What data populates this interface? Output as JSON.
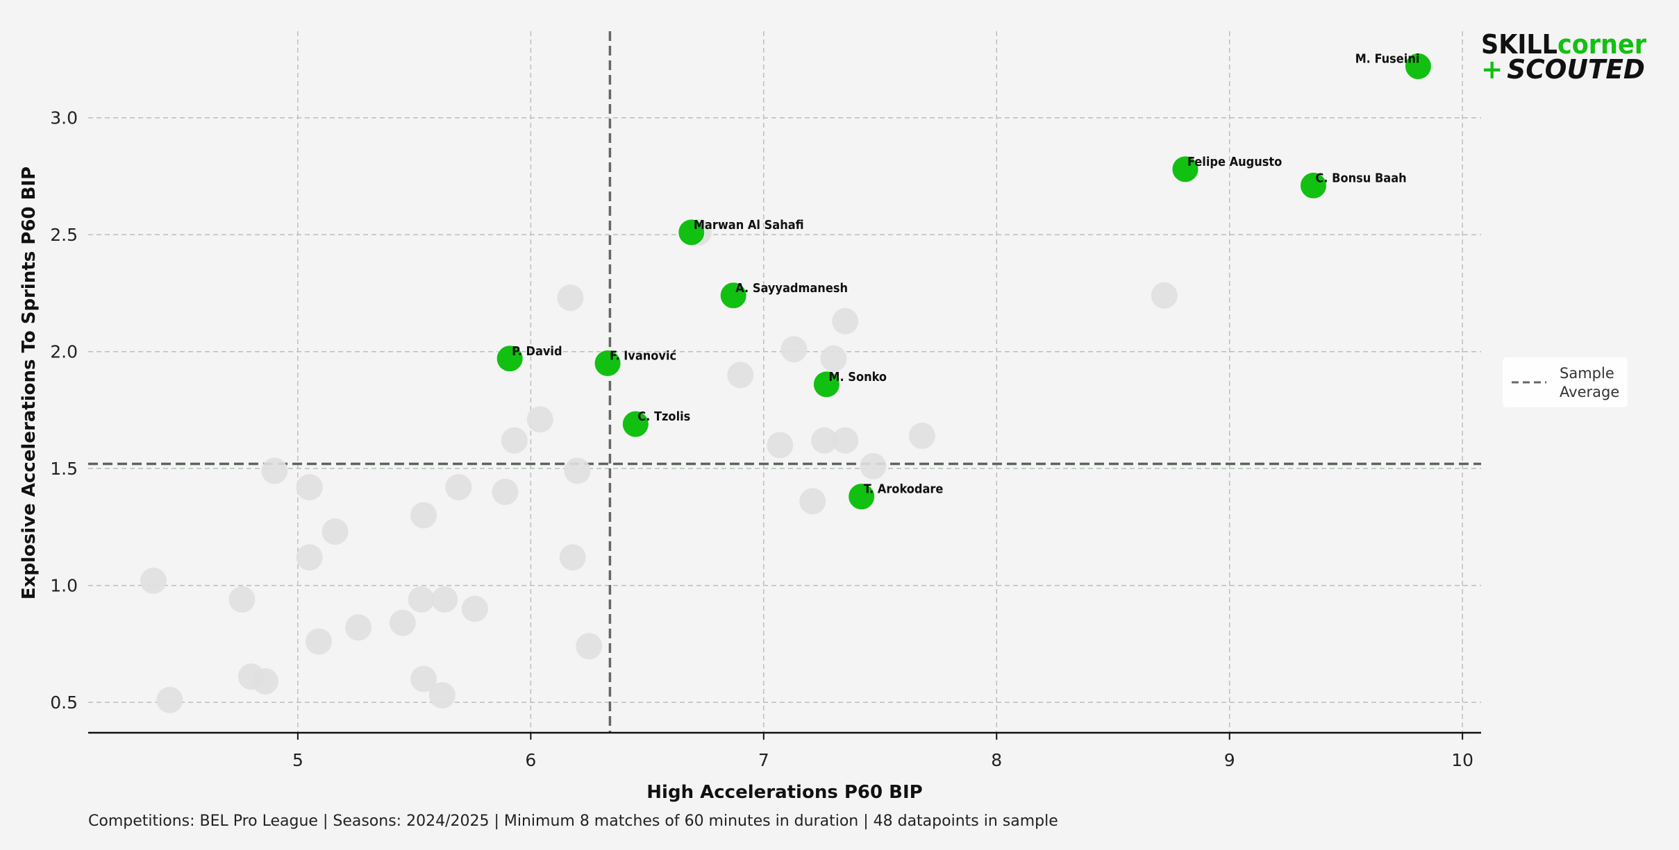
{
  "chart_data": {
    "type": "scatter",
    "xlabel": "High Accelerations P60 BIP",
    "ylabel": "Explosive Accelerations To Sprints P60 BIP",
    "xlim": [
      4.1,
      10.08
    ],
    "ylim": [
      0.37,
      3.37
    ],
    "xticks": [
      5,
      6,
      7,
      8,
      9,
      10
    ],
    "yticks": [
      0.5,
      1.0,
      1.5,
      2.0,
      2.5,
      3.0
    ],
    "xtick_labels": [
      "5",
      "6",
      "7",
      "8",
      "9",
      "10"
    ],
    "ytick_labels": [
      "0.5",
      "1.0",
      "1.5",
      "2.0",
      "2.5",
      "3.0"
    ],
    "grid": true,
    "reference_lines": {
      "x_avg": 6.34,
      "y_avg": 1.52
    },
    "legend": {
      "position": "right",
      "label_line1": "Sample",
      "label_line2": "Average"
    },
    "highlight_color": "#12c012",
    "background_color": "#e0e0e0",
    "highlighted": [
      {
        "name": "M. Fuseini",
        "x": 9.81,
        "y": 3.22,
        "label_side": "left"
      },
      {
        "name": "Felipe Augusto",
        "x": 8.81,
        "y": 2.78,
        "label_side": "right"
      },
      {
        "name": "C. Bonsu Baah",
        "x": 9.36,
        "y": 2.71,
        "label_side": "right"
      },
      {
        "name": "Marwan Al Sahafi",
        "x": 6.69,
        "y": 2.51,
        "label_side": "right"
      },
      {
        "name": "A. Sayyadmanesh",
        "x": 6.87,
        "y": 2.24,
        "label_side": "right"
      },
      {
        "name": "P. David",
        "x": 5.91,
        "y": 1.97,
        "label_side": "right"
      },
      {
        "name": "F. Ivanović",
        "x": 6.33,
        "y": 1.95,
        "label_side": "right"
      },
      {
        "name": "M. Sonko",
        "x": 7.27,
        "y": 1.86,
        "label_side": "right"
      },
      {
        "name": "C. Tzolis",
        "x": 6.45,
        "y": 1.69,
        "label_side": "right"
      },
      {
        "name": "T. Arokodare",
        "x": 7.42,
        "y": 1.38,
        "label_side": "right"
      }
    ],
    "background_points": [
      {
        "x": 4.38,
        "y": 1.02
      },
      {
        "x": 4.45,
        "y": 0.51
      },
      {
        "x": 4.76,
        "y": 0.94
      },
      {
        "x": 4.8,
        "y": 0.61
      },
      {
        "x": 4.86,
        "y": 0.59
      },
      {
        "x": 4.9,
        "y": 1.49
      },
      {
        "x": 5.05,
        "y": 1.42
      },
      {
        "x": 5.05,
        "y": 1.12
      },
      {
        "x": 5.09,
        "y": 0.76
      },
      {
        "x": 5.16,
        "y": 1.23
      },
      {
        "x": 5.26,
        "y": 0.82
      },
      {
        "x": 5.45,
        "y": 0.84
      },
      {
        "x": 5.53,
        "y": 0.94
      },
      {
        "x": 5.54,
        "y": 1.3
      },
      {
        "x": 5.54,
        "y": 0.6
      },
      {
        "x": 5.62,
        "y": 0.53
      },
      {
        "x": 5.63,
        "y": 0.94
      },
      {
        "x": 5.69,
        "y": 1.42
      },
      {
        "x": 5.76,
        "y": 0.9
      },
      {
        "x": 5.89,
        "y": 1.4
      },
      {
        "x": 5.93,
        "y": 1.62
      },
      {
        "x": 6.04,
        "y": 1.71
      },
      {
        "x": 6.17,
        "y": 2.23
      },
      {
        "x": 6.18,
        "y": 1.12
      },
      {
        "x": 6.2,
        "y": 1.49
      },
      {
        "x": 6.25,
        "y": 0.74
      },
      {
        "x": 6.9,
        "y": 1.9
      },
      {
        "x": 7.07,
        "y": 1.6
      },
      {
        "x": 7.13,
        "y": 2.01
      },
      {
        "x": 7.21,
        "y": 1.36
      },
      {
        "x": 7.26,
        "y": 1.62
      },
      {
        "x": 7.3,
        "y": 1.97
      },
      {
        "x": 7.35,
        "y": 2.13
      },
      {
        "x": 7.35,
        "y": 1.62
      },
      {
        "x": 7.47,
        "y": 1.51
      },
      {
        "x": 7.68,
        "y": 1.64
      },
      {
        "x": 8.72,
        "y": 2.24
      },
      {
        "x": 6.72,
        "y": 2.51
      }
    ]
  },
  "footnote": "Competitions: BEL Pro League | Seasons: 2024/2025 | Minimum 8 matches of 60 minutes in duration | 48 datapoints in sample",
  "logo": {
    "line1_a": "SKILL",
    "line1_b": "corner",
    "line2_plus": "+",
    "line2_b": "SCOUTED"
  }
}
